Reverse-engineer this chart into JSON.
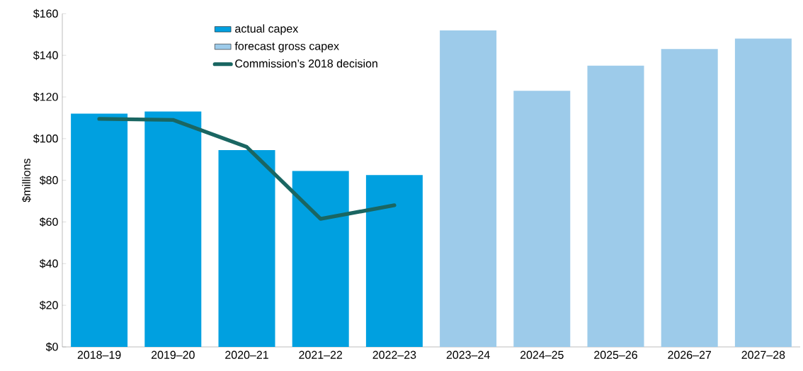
{
  "chart_data": {
    "type": "bar",
    "ylabel": "$millions",
    "categories": [
      "2018–19",
      "2019–20",
      "2020–21",
      "2021–22",
      "2022–23",
      "2023–24",
      "2024–25",
      "2025–26",
      "2026–27",
      "2027–28"
    ],
    "series": [
      {
        "name": "actual capex",
        "color": "#00a0e0",
        "values": [
          112,
          113,
          94.5,
          84.5,
          82.5,
          null,
          null,
          null,
          null,
          null
        ]
      },
      {
        "name": "forecast gross capex",
        "color": "#9dcbea",
        "values": [
          null,
          null,
          null,
          null,
          null,
          152,
          123,
          135,
          143,
          148
        ]
      },
      {
        "name": "Commission’s 2018 decision",
        "type": "line",
        "color": "#1a6662",
        "values": [
          109.5,
          109,
          96,
          61.5,
          68,
          null,
          null,
          null,
          null,
          null
        ]
      }
    ],
    "ylim": [
      0,
      160
    ],
    "yticks": [
      {
        "value": 0,
        "label": "$0"
      },
      {
        "value": 20,
        "label": "$20"
      },
      {
        "value": 40,
        "label": "$40"
      },
      {
        "value": 60,
        "label": "$60"
      },
      {
        "value": 80,
        "label": "$80"
      },
      {
        "value": 100,
        "label": "$100"
      },
      {
        "value": 120,
        "label": "$120"
      },
      {
        "value": 140,
        "label": "$140"
      },
      {
        "value": 160,
        "label": "$160"
      }
    ],
    "grid": false,
    "legend": "top left"
  }
}
